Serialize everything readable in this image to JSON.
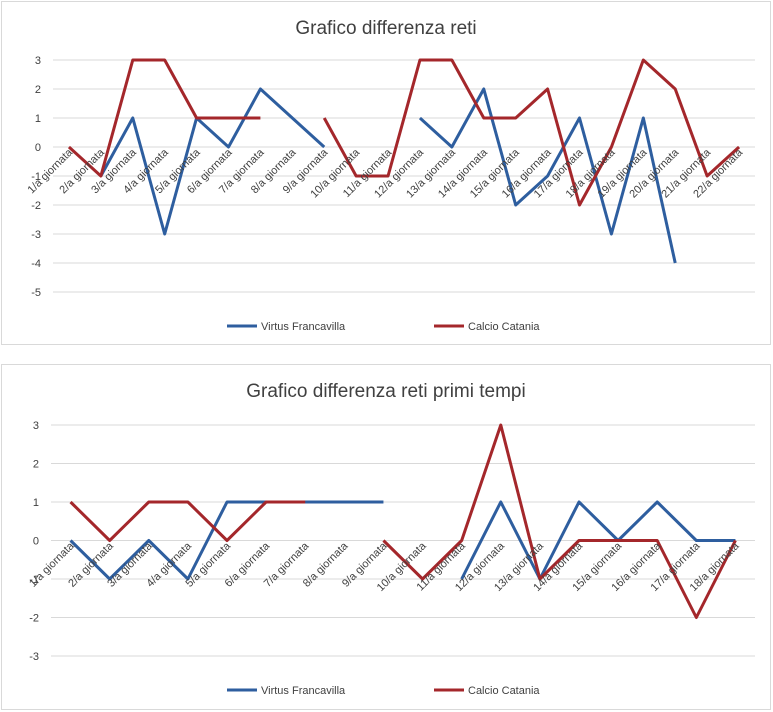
{
  "chart_data": [
    {
      "type": "line",
      "title": "Grafico differenza reti",
      "categories": [
        "1/a giornata",
        "2/a giornata",
        "3/a giornata",
        "4/a giornata",
        "5/a giornata",
        "6/a giornata",
        "7/a giornata",
        "8/a giornata",
        "9/a giornata",
        "10/a giornata",
        "11/a giornata",
        "12/a giornata",
        "13/a giornata",
        "14/a giornata",
        "15/a giornata",
        "16/a giornata",
        "17/a giornata",
        "18/a giornata",
        "19/a giornata",
        "20/a giornata",
        "21/a giornata",
        "22/a giornata"
      ],
      "ylim": [
        -5,
        3
      ],
      "yticks": [
        3,
        2,
        1,
        0,
        -1,
        -2,
        -3,
        -4,
        -5
      ],
      "grid": true,
      "legend": "bottom",
      "series": [
        {
          "name": "Virtus Francavilla",
          "color": "#2e5e9f",
          "values": [
            null,
            -1,
            1,
            -3,
            1,
            0,
            2,
            1,
            0,
            null,
            null,
            1,
            0,
            2,
            -2,
            -1,
            1,
            -3,
            1,
            -4,
            null,
            null
          ]
        },
        {
          "name": "Calcio Catania",
          "color": "#a4272b",
          "values": [
            0,
            -1,
            3,
            3,
            1,
            1,
            1,
            null,
            1,
            -1,
            -1,
            3,
            3,
            1,
            1,
            2,
            -2,
            0,
            3,
            2,
            -1,
            0
          ]
        }
      ]
    },
    {
      "type": "line",
      "title": "Grafico differenza reti primi tempi",
      "categories": [
        "1/a giornata",
        "2/a giornata",
        "3/a giornata",
        "4/a giornata",
        "5/a giornata",
        "6/a giornata",
        "7/a giornata",
        "8/a giornata",
        "9/a giornata",
        "10/a giornata",
        "11/a giornata",
        "12/a giornata",
        "13/a giornata",
        "14/a giornata",
        "15/a giornata",
        "16/a giornata",
        "17/a giornata",
        "18/a giornata"
      ],
      "ylim": [
        -3,
        3
      ],
      "yticks": [
        3,
        2,
        1,
        0,
        -1,
        -2,
        -3
      ],
      "grid": true,
      "legend": "bottom",
      "series": [
        {
          "name": "Virtus Francavilla",
          "color": "#2e5e9f",
          "values": [
            0,
            -1,
            0,
            -1,
            1,
            1,
            1,
            1,
            1,
            null,
            -1,
            1,
            -1,
            1,
            0,
            1,
            0,
            0
          ]
        },
        {
          "name": "Calcio Catania",
          "color": "#a4272b",
          "values": [
            1,
            0,
            1,
            1,
            0,
            1,
            1,
            null,
            0,
            -1,
            0,
            3,
            -1,
            0,
            0,
            0,
            -2,
            0
          ]
        }
      ]
    }
  ]
}
